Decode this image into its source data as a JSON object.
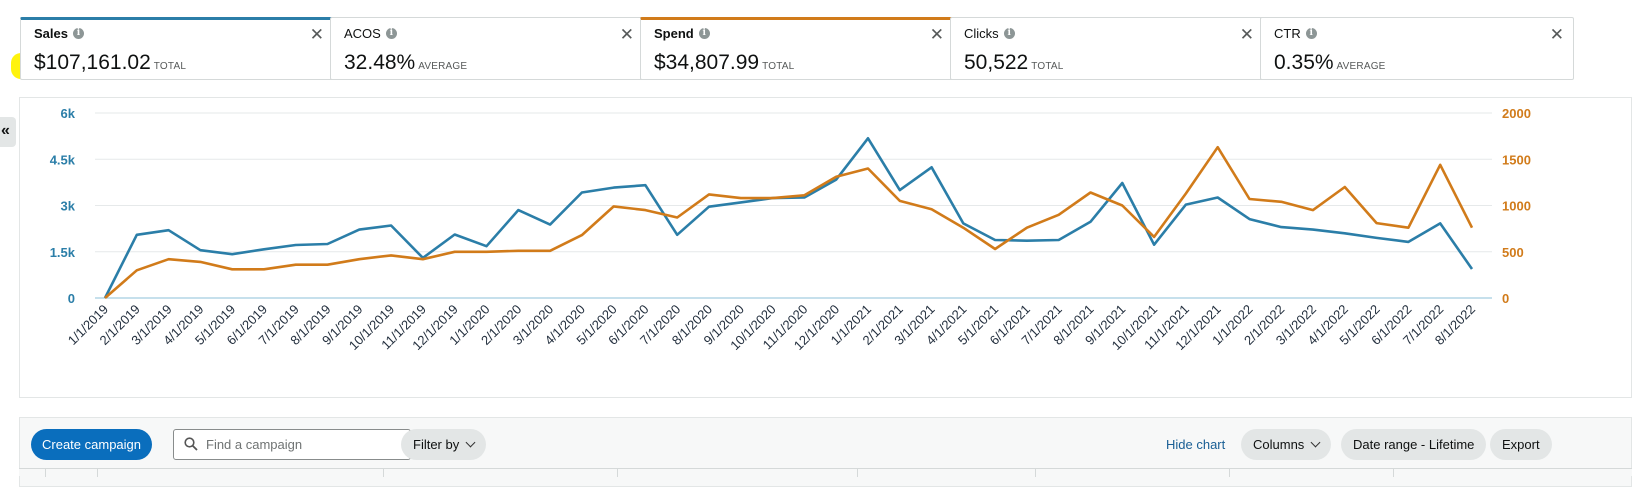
{
  "metrics": [
    {
      "label": "Sales",
      "value": "$107,161.02",
      "agg": "TOTAL",
      "selected": "blue"
    },
    {
      "label": "ACOS",
      "value": "32.48%",
      "agg": "AVERAGE",
      "selected": ""
    },
    {
      "label": "Spend",
      "value": "$34,807.99",
      "agg": "TOTAL",
      "selected": "orange"
    },
    {
      "label": "Clicks",
      "value": "50,522",
      "agg": "TOTAL",
      "selected": ""
    },
    {
      "label": "CTR",
      "value": "0.35%",
      "agg": "AVERAGE",
      "selected": ""
    }
  ],
  "icons": {
    "info": "info-icon",
    "close": "close-icon",
    "collapse": "double-chevron-left-icon",
    "search": "search-icon",
    "dropdown": "chevron-down-icon"
  },
  "collapse_glyph": "«",
  "close_glyph": "✕",
  "info_glyph": "i",
  "colors": {
    "sales": "#2b7ea8",
    "spend": "#d17b1a",
    "primary": "#0a6ebd",
    "highlight": "#fff200"
  },
  "chart_data": {
    "type": "line",
    "x": [
      "1/1/2019",
      "2/1/2019",
      "3/1/2019",
      "4/1/2019",
      "5/1/2019",
      "6/1/2019",
      "7/1/2019",
      "8/1/2019",
      "9/1/2019",
      "10/1/2019",
      "11/1/2019",
      "12/1/2019",
      "1/1/2020",
      "2/1/2020",
      "3/1/2020",
      "4/1/2020",
      "5/1/2020",
      "6/1/2020",
      "7/1/2020",
      "8/1/2020",
      "9/1/2020",
      "10/1/2020",
      "11/1/2020",
      "12/1/2020",
      "1/1/2021",
      "2/1/2021",
      "3/1/2021",
      "4/1/2021",
      "5/1/2021",
      "6/1/2021",
      "7/1/2021",
      "8/1/2021",
      "9/1/2021",
      "10/1/2021",
      "11/1/2021",
      "12/1/2021",
      "1/1/2022",
      "2/1/2022",
      "3/1/2022",
      "4/1/2022",
      "5/1/2022",
      "6/1/2022",
      "7/1/2022",
      "8/1/2022"
    ],
    "series": [
      {
        "name": "Sales",
        "axis": "left",
        "color": "#2b7ea8",
        "values": [
          0,
          2050,
          2200,
          1550,
          1420,
          1580,
          1720,
          1750,
          2220,
          2350,
          1300,
          2060,
          1680,
          2850,
          2380,
          3420,
          3580,
          3660,
          2050,
          2960,
          3100,
          3240,
          3260,
          3840,
          5180,
          3500,
          4240,
          2420,
          1880,
          1860,
          1880,
          2470,
          3730,
          1730,
          3030,
          3260,
          2560,
          2300,
          2220,
          2100,
          1950,
          1820,
          2420,
          940
        ]
      },
      {
        "name": "Spend",
        "axis": "right",
        "color": "#d17b1a",
        "values": [
          0,
          300,
          420,
          390,
          310,
          310,
          360,
          360,
          420,
          460,
          420,
          500,
          500,
          510,
          510,
          680,
          990,
          950,
          870,
          1120,
          1080,
          1080,
          1110,
          1310,
          1400,
          1050,
          960,
          760,
          530,
          760,
          900,
          1140,
          1000,
          660,
          1130,
          1630,
          1070,
          1040,
          950,
          1200,
          810,
          760,
          1440,
          760
        ]
      }
    ],
    "yleft": {
      "ticks": [
        "0",
        "1.5k",
        "3k",
        "4.5k",
        "6k"
      ],
      "values": [
        0,
        1500,
        3000,
        4500,
        6000
      ],
      "ylim": [
        0,
        6000
      ]
    },
    "yright": {
      "ticks": [
        "0",
        "500",
        "1000",
        "1500",
        "2000"
      ],
      "values": [
        0,
        500,
        1000,
        1500,
        2000
      ],
      "ylim": [
        0,
        2000
      ]
    },
    "grid": true,
    "title": "",
    "xlabel": "",
    "ylabel": ""
  },
  "toolbar": {
    "create_label": "Create campaign",
    "search_placeholder": "Find a campaign",
    "filter_label": "Filter by",
    "hide_chart_label": "Hide chart",
    "columns_label": "Columns",
    "date_range_label": "Date range - Lifetime",
    "export_label": "Export"
  }
}
